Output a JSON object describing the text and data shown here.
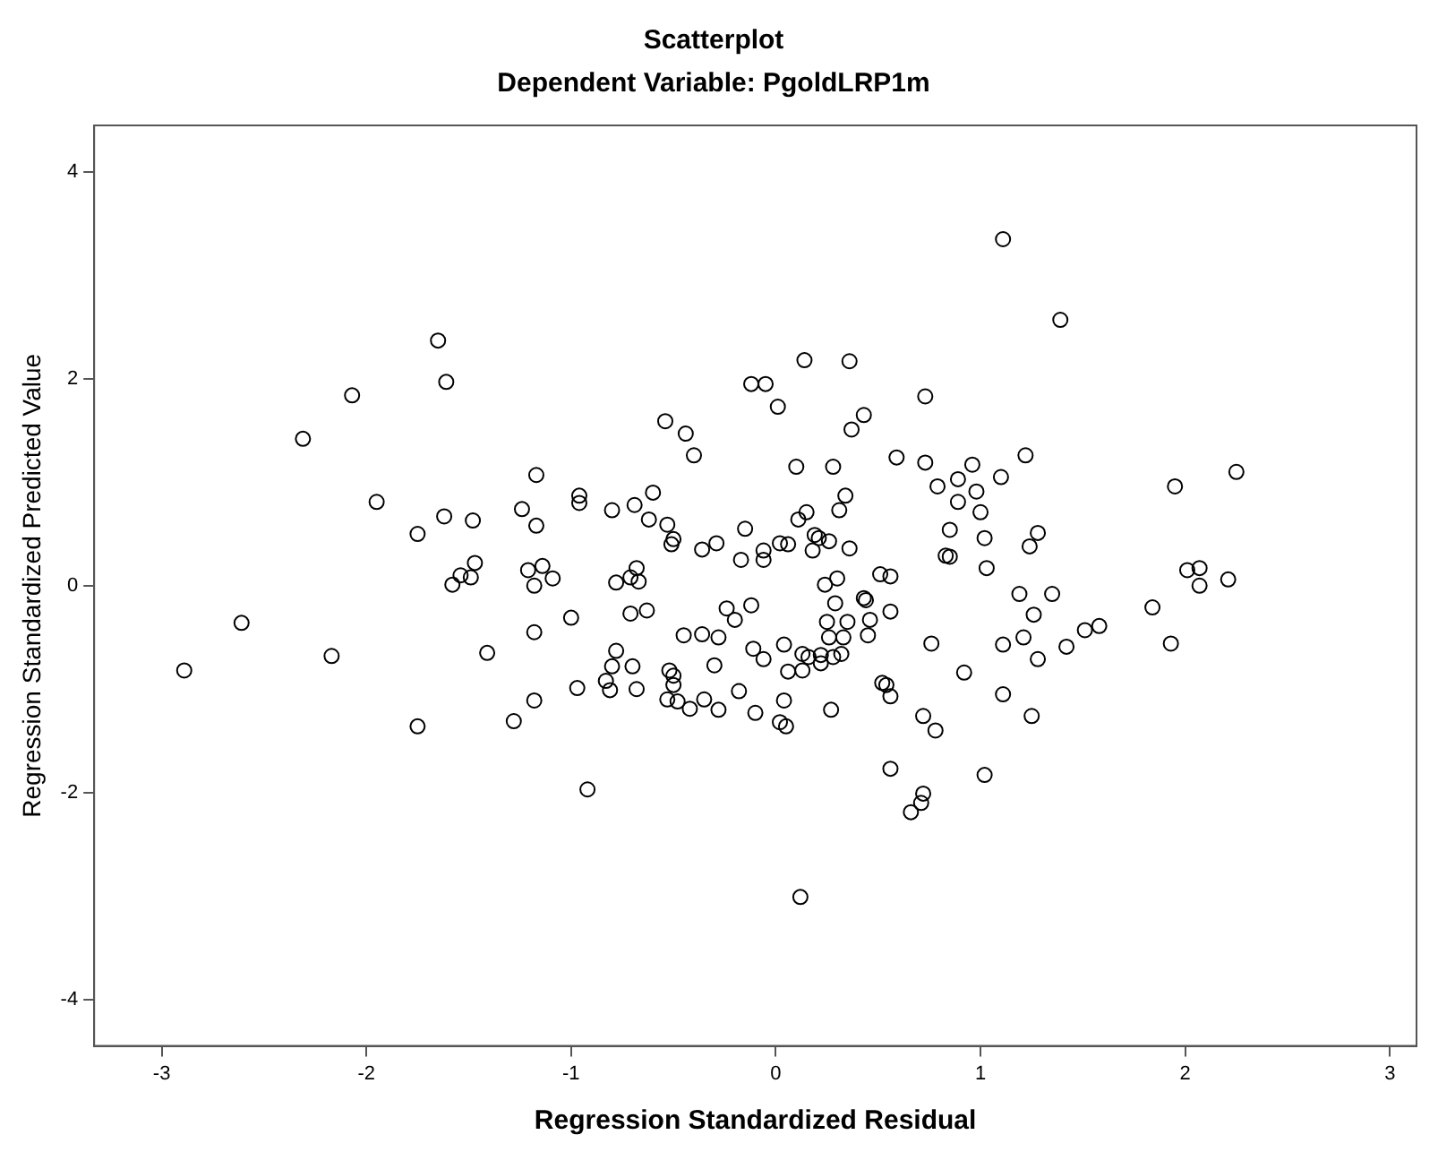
{
  "chart_data": {
    "type": "scatter",
    "title": "Scatterplot",
    "subtitle": "Dependent Variable: PgoldLRP1m",
    "xlabel": "Regression Standardized Residual",
    "ylabel": "Regression Standardized Predicted Value",
    "xlim": [
      -3.33,
      3.13
    ],
    "ylim": [
      -4.45,
      4.45
    ],
    "xticks": [
      -3,
      -2,
      -1,
      0,
      1,
      2,
      3
    ],
    "yticks": [
      -4,
      -2,
      0,
      2,
      4
    ],
    "marker": "circle",
    "series": [
      {
        "color": "#000000",
        "x": [
          -1.65,
          -1.61,
          -2.07,
          -2.31,
          -1.17,
          -1.95,
          -1.24,
          -1.62,
          -1.48,
          -1.17,
          -1.75,
          -1.47,
          -1.49,
          -1.54,
          -1.58,
          -1.21,
          -1.14,
          -1.18,
          1.11,
          0.14,
          0.36,
          -0.12,
          -0.05,
          0.01,
          0.73,
          0.43,
          0.37,
          -0.54,
          -0.44,
          -0.4,
          0.59,
          0.1,
          0.28,
          0.73,
          0.96,
          -0.96,
          -0.96,
          -0.8,
          -0.69,
          -0.6,
          -0.62,
          -0.53,
          -0.51,
          -0.5,
          -0.36,
          -0.29,
          -0.15,
          -0.17,
          -0.06,
          -0.06,
          0.02,
          0.06,
          0.11,
          0.15,
          0.19,
          0.21,
          0.26,
          0.18,
          0.36,
          0.31,
          0.34,
          0.79,
          0.89,
          0.98,
          0.89,
          1.0,
          0.85,
          0.83,
          0.85,
          1.02,
          1.03,
          -1.09,
          -0.78,
          -0.71,
          -0.68,
          -0.67,
          0.24,
          0.3,
          0.51,
          0.56,
          1.39,
          1.22,
          1.1,
          1.28,
          1.24,
          1.95,
          2.25,
          2.01,
          2.07,
          2.07,
          2.21,
          1.19,
          1.35,
          -2.89,
          -2.61,
          -2.17,
          -1.75,
          -1.41,
          -1.18,
          -1.18,
          -1.28,
          -1.0,
          -0.97,
          -0.92,
          -0.78,
          -0.8,
          -0.83,
          -0.81,
          -0.7,
          -0.68,
          -0.71,
          -0.63,
          -0.52,
          -0.5,
          -0.5,
          -0.53,
          -0.48,
          -0.42,
          -0.35,
          -0.28,
          -0.45,
          -0.36,
          -0.28,
          -0.3,
          -0.24,
          -0.2,
          -0.12,
          -0.18,
          -0.1,
          -0.11,
          -0.06,
          0.04,
          0.04,
          0.02,
          0.05,
          0.12,
          0.06,
          0.13,
          0.13,
          0.16,
          0.22,
          0.22,
          0.28,
          0.32,
          0.26,
          0.33,
          0.25,
          0.35,
          0.29,
          0.43,
          0.44,
          0.46,
          0.45,
          0.56,
          0.27,
          0.52,
          0.54,
          0.56,
          0.76,
          0.92,
          0.72,
          0.78,
          0.56,
          0.72,
          0.71,
          0.66,
          1.02,
          1.26,
          1.11,
          1.21,
          1.28,
          1.42,
          1.51,
          1.58,
          1.11,
          1.25,
          1.84,
          1.93
        ],
        "values": [
          2.37,
          1.97,
          1.84,
          1.42,
          1.07,
          0.81,
          0.74,
          0.67,
          0.63,
          0.58,
          0.5,
          0.22,
          0.08,
          0.1,
          0.01,
          0.15,
          0.19,
          0.0,
          3.35,
          2.18,
          2.17,
          1.95,
          1.95,
          1.73,
          1.83,
          1.65,
          1.51,
          1.59,
          1.47,
          1.26,
          1.24,
          1.15,
          1.15,
          1.19,
          1.17,
          0.87,
          0.8,
          0.73,
          0.78,
          0.9,
          0.64,
          0.59,
          0.4,
          0.45,
          0.35,
          0.41,
          0.55,
          0.25,
          0.25,
          0.34,
          0.41,
          0.4,
          0.64,
          0.71,
          0.49,
          0.46,
          0.43,
          0.34,
          0.36,
          0.73,
          0.87,
          0.96,
          1.03,
          0.91,
          0.81,
          0.71,
          0.54,
          0.29,
          0.28,
          0.46,
          0.17,
          0.07,
          0.03,
          0.08,
          0.17,
          0.04,
          0.01,
          0.07,
          0.11,
          0.09,
          2.57,
          1.26,
          1.05,
          0.51,
          0.38,
          0.96,
          1.1,
          0.15,
          0.17,
          0.0,
          0.06,
          -0.08,
          -0.08,
          -0.82,
          -0.36,
          -0.68,
          -1.36,
          -0.65,
          -0.45,
          -1.11,
          -1.31,
          -0.31,
          -0.99,
          -1.97,
          -0.63,
          -0.78,
          -0.92,
          -1.01,
          -0.78,
          -1.0,
          -0.27,
          -0.24,
          -0.82,
          -0.87,
          -0.96,
          -1.1,
          -1.12,
          -1.19,
          -1.1,
          -1.2,
          -0.48,
          -0.47,
          -0.5,
          -0.77,
          -0.22,
          -0.33,
          -0.19,
          -1.02,
          -1.23,
          -0.61,
          -0.71,
          -0.57,
          -1.11,
          -1.32,
          -1.36,
          -3.01,
          -0.83,
          -0.66,
          -0.82,
          -0.69,
          -0.67,
          -0.75,
          -0.69,
          -0.66,
          -0.5,
          -0.5,
          -0.35,
          -0.35,
          -0.17,
          -0.12,
          -0.14,
          -0.33,
          -0.48,
          -0.25,
          -1.2,
          -0.94,
          -0.96,
          -1.07,
          -0.56,
          -0.84,
          -1.26,
          -1.4,
          -1.77,
          -2.01,
          -2.1,
          -2.19,
          -1.83,
          -0.28,
          -0.57,
          -0.5,
          -0.71,
          -0.59,
          -0.43,
          -0.39,
          -1.05,
          -1.26,
          -0.21,
          -0.56
        ]
      }
    ]
  }
}
